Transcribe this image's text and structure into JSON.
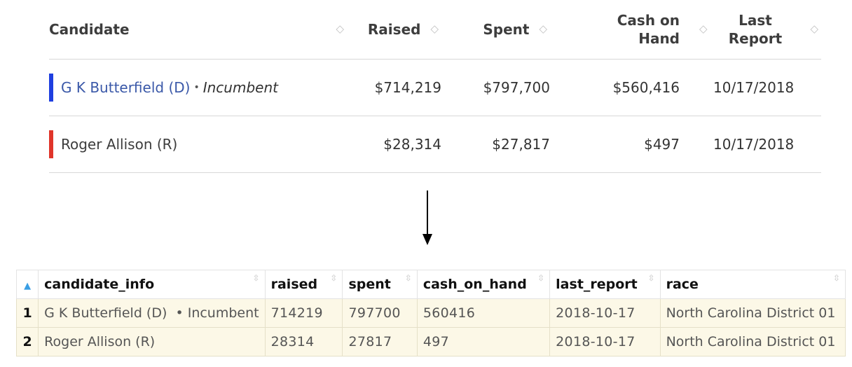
{
  "web_table": {
    "headers": {
      "candidate": "Candidate",
      "raised": "Raised",
      "spent": "Spent",
      "cash_line1": "Cash on",
      "cash_line2": "Hand",
      "last_report": "Last Report"
    },
    "rows": [
      {
        "candidate": "G K Butterfield (D)",
        "bullet": "•",
        "tag": "Incumbent",
        "party_color": "#1f3fe0",
        "raised": "$714,219",
        "spent": "$797,700",
        "cash": "$560,416",
        "last_report": "10/17/2018"
      },
      {
        "candidate": "Roger Allison (R)",
        "party_color": "#e0352a",
        "raised": "$28,314",
        "spent": "$27,817",
        "cash": "$497",
        "last_report": "10/17/2018"
      }
    ]
  },
  "data_frame": {
    "columns": [
      "candidate_info",
      "raised",
      "spent",
      "cash_on_hand",
      "last_report",
      "race"
    ],
    "rows": [
      {
        "index": "1",
        "candidate_info": "G K Butterfield (D)  • Incumbent",
        "raised": "714219",
        "spent": "797700",
        "cash_on_hand": "560416",
        "last_report": "2018-10-17",
        "race": "North Carolina District 01"
      },
      {
        "index": "2",
        "candidate_info": "Roger Allison (R)",
        "raised": "28314",
        "spent": "27817",
        "cash_on_hand": "497",
        "last_report": "2018-10-17",
        "race": "North Carolina District 01"
      }
    ]
  },
  "icons": {
    "sort": "sort-updown-icon",
    "arrow": "arrow-down-icon",
    "index_sort": "sort-ascending-icon"
  },
  "colors": {
    "democrat": "#1f3fe0",
    "republican": "#e0352a",
    "link": "#3a58a8",
    "frame_row_bg": "#fcf8e7"
  }
}
